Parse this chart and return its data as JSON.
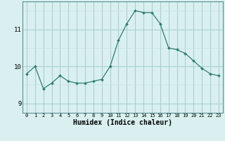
{
  "x": [
    0,
    1,
    2,
    3,
    4,
    5,
    6,
    7,
    8,
    9,
    10,
    11,
    12,
    13,
    14,
    15,
    16,
    17,
    18,
    19,
    20,
    21,
    22,
    23
  ],
  "y": [
    9.8,
    10.0,
    9.4,
    9.55,
    9.75,
    9.6,
    9.55,
    9.55,
    9.6,
    9.65,
    10.0,
    10.7,
    11.15,
    11.5,
    11.45,
    11.45,
    11.15,
    10.5,
    10.45,
    10.35,
    10.15,
    9.95,
    9.8,
    9.75
  ],
  "line_color": "#2e7d6e",
  "marker": "D",
  "marker_size": 2,
  "bg_color": "#daf0f0",
  "grid_major_color": "#aacfcf",
  "grid_minor_color": "#c4e0e0",
  "xlabel": "Humidex (Indice chaleur)",
  "xlim": [
    -0.5,
    23.5
  ],
  "ylim": [
    8.75,
    11.75
  ],
  "yticks": [
    9,
    10,
    11
  ],
  "xticks": [
    0,
    1,
    2,
    3,
    4,
    5,
    6,
    7,
    8,
    9,
    10,
    11,
    12,
    13,
    14,
    15,
    16,
    17,
    18,
    19,
    20,
    21,
    22,
    23
  ],
  "figsize": [
    3.2,
    2.0
  ],
  "dpi": 100
}
